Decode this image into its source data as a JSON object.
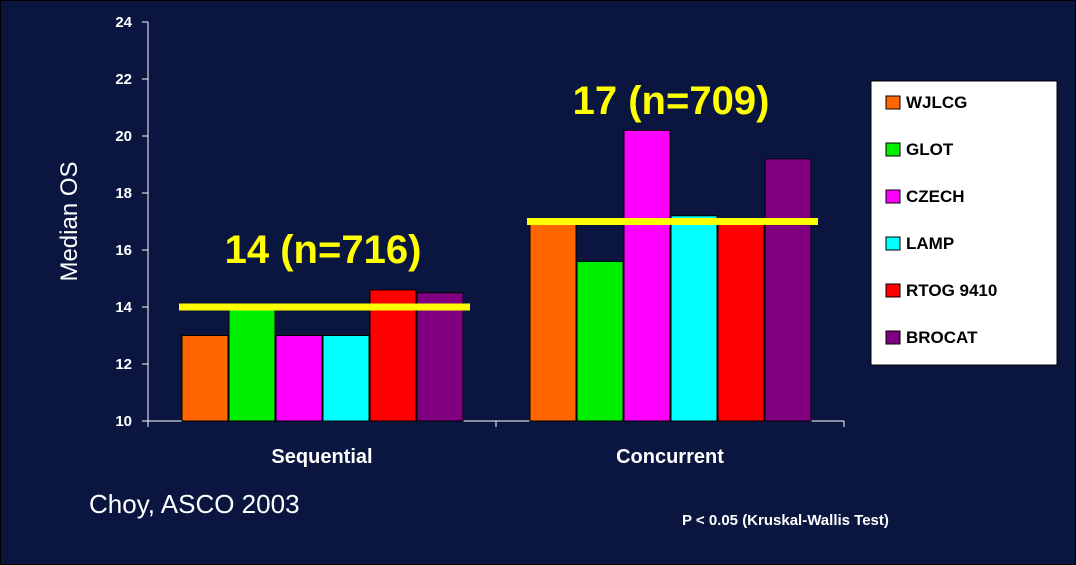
{
  "chart_data": {
    "type": "bar",
    "ylabel": "Median OS",
    "ylim": [
      10,
      24
    ],
    "yticks": [
      10,
      12,
      14,
      16,
      18,
      20,
      22,
      24
    ],
    "categories": [
      "Sequential",
      "Concurrent"
    ],
    "series": [
      {
        "name": "WJLCG",
        "color": "#ff6600",
        "values": [
          13.0,
          17.0
        ]
      },
      {
        "name": "GLOT",
        "color": "#00ee00",
        "values": [
          13.9,
          15.6
        ]
      },
      {
        "name": "CZECH",
        "color": "#ff00ff",
        "values": [
          13.0,
          20.2
        ]
      },
      {
        "name": "LAMP",
        "color": "#00ffff",
        "values": [
          13.0,
          17.2
        ]
      },
      {
        "name": "RTOG 9410",
        "color": "#ff0000",
        "values": [
          14.6,
          17.0
        ]
      },
      {
        "name": "BROCAT",
        "color": "#800080",
        "values": [
          14.5,
          19.2
        ]
      }
    ],
    "annotations": [
      {
        "text": "14 (n=716)",
        "category": "Sequential",
        "value": 14
      },
      {
        "text": "17 (n=709)",
        "category": "Concurrent",
        "value": 17
      }
    ],
    "reference_line_color": "#ffff00",
    "legend": "right",
    "grid": false
  },
  "footer": {
    "source": "Choy, ASCO 2003",
    "pvalue": "P < 0.05 (Kruskal-Wallis Test)"
  }
}
